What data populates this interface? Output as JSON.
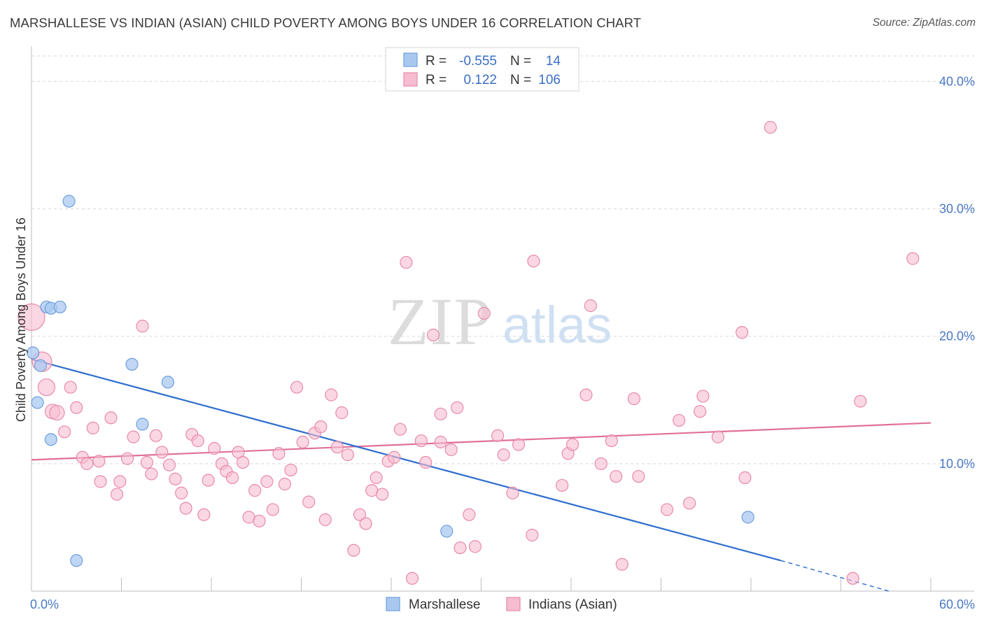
{
  "title": "MARSHALLESE VS INDIAN (ASIAN) CHILD POVERTY AMONG BOYS UNDER 16 CORRELATION CHART",
  "source": "Source: ZipAtlas.com",
  "watermark": {
    "zip": "ZIP",
    "atlas": "atlas"
  },
  "colors": {
    "marshallese_fill": "#a9c8f0",
    "marshallese_stroke": "#6e9fdc",
    "marshallese_line": "#2f6fce",
    "indian_fill": "#f6bcd0",
    "indian_stroke": "#e88aa9",
    "indian_line": "#e0709a",
    "tick_text": "#4a78c4",
    "grid": "#d8d8d8"
  },
  "legend": {
    "rows": [
      {
        "r_label": "R =",
        "r_value": "-0.555",
        "n_label": "N =",
        "n_value": "14"
      },
      {
        "r_label": "R =",
        "r_value": "0.122",
        "n_label": "N =",
        "n_value": "106"
      }
    ]
  },
  "bottom_legend": [
    "Marshallese",
    "Indians (Asian)"
  ],
  "chart_data": {
    "type": "scatter",
    "title": "MARSHALLESE VS INDIAN (ASIAN) CHILD POVERTY AMONG BOYS UNDER 16 CORRELATION CHART",
    "xlabel": "",
    "ylabel": "Child Poverty Among Boys Under 16",
    "xlim": [
      0,
      60
    ],
    "ylim": [
      0,
      42
    ],
    "x_tick_labels": [
      "0.0%",
      "60.0%"
    ],
    "y_ticks": [
      10,
      20,
      30,
      40
    ],
    "y_tick_labels": [
      "10.0%",
      "20.0%",
      "30.0%",
      "40.0%"
    ],
    "grid": "horizontal dashed",
    "legend_position": "top-center",
    "series": [
      {
        "name": "Marshallese",
        "r": -0.555,
        "n": 14,
        "points": [
          [
            2.5,
            30.6
          ],
          [
            1.0,
            22.3
          ],
          [
            1.3,
            22.2
          ],
          [
            1.9,
            22.3
          ],
          [
            0.1,
            18.7
          ],
          [
            0.6,
            17.7
          ],
          [
            6.7,
            17.8
          ],
          [
            9.1,
            16.4
          ],
          [
            0.4,
            14.8
          ],
          [
            7.4,
            13.1
          ],
          [
            1.3,
            11.9
          ],
          [
            3.0,
            2.4
          ],
          [
            27.7,
            4.7
          ],
          [
            47.8,
            5.8
          ]
        ],
        "trend": {
          "x": [
            0,
            50.0
          ],
          "y": [
            18.2,
            2.4
          ]
        },
        "trend_dashed": {
          "x": [
            50.0,
            57.2
          ],
          "y": [
            2.4,
            0.0
          ]
        }
      },
      {
        "name": "Indians (Asian)",
        "r": 0.122,
        "n": 106,
        "points": [
          [
            0.0,
            21.5
          ],
          [
            0.7,
            18.0
          ],
          [
            1.0,
            16.0
          ],
          [
            1.4,
            14.1
          ],
          [
            1.7,
            14.0
          ],
          [
            2.2,
            12.5
          ],
          [
            2.6,
            16.0
          ],
          [
            3.0,
            14.4
          ],
          [
            3.4,
            10.5
          ],
          [
            3.7,
            10.0
          ],
          [
            4.1,
            12.8
          ],
          [
            4.5,
            10.2
          ],
          [
            5.3,
            13.6
          ],
          [
            4.6,
            8.6
          ],
          [
            5.9,
            8.6
          ],
          [
            5.7,
            7.6
          ],
          [
            6.4,
            10.4
          ],
          [
            6.8,
            12.1
          ],
          [
            7.4,
            20.8
          ],
          [
            7.7,
            10.1
          ],
          [
            8.0,
            9.2
          ],
          [
            8.3,
            12.2
          ],
          [
            8.7,
            10.9
          ],
          [
            9.2,
            9.9
          ],
          [
            9.6,
            8.8
          ],
          [
            10.0,
            7.7
          ],
          [
            10.3,
            6.5
          ],
          [
            10.7,
            12.3
          ],
          [
            11.1,
            11.8
          ],
          [
            11.5,
            6.0
          ],
          [
            11.8,
            8.7
          ],
          [
            12.2,
            11.2
          ],
          [
            12.7,
            10.0
          ],
          [
            13.0,
            9.4
          ],
          [
            13.4,
            8.9
          ],
          [
            13.8,
            10.9
          ],
          [
            14.1,
            10.1
          ],
          [
            14.5,
            5.8
          ],
          [
            14.9,
            7.9
          ],
          [
            15.2,
            5.5
          ],
          [
            15.7,
            8.6
          ],
          [
            16.1,
            6.4
          ],
          [
            16.5,
            10.8
          ],
          [
            16.9,
            8.4
          ],
          [
            17.3,
            9.5
          ],
          [
            17.7,
            16.0
          ],
          [
            18.1,
            11.7
          ],
          [
            18.5,
            7.0
          ],
          [
            18.9,
            12.4
          ],
          [
            19.3,
            12.9
          ],
          [
            19.6,
            5.6
          ],
          [
            20.0,
            15.4
          ],
          [
            20.4,
            11.3
          ],
          [
            20.7,
            14.0
          ],
          [
            21.1,
            10.7
          ],
          [
            21.5,
            3.2
          ],
          [
            21.9,
            6.0
          ],
          [
            22.3,
            5.3
          ],
          [
            22.7,
            7.9
          ],
          [
            23.0,
            8.9
          ],
          [
            23.4,
            7.6
          ],
          [
            23.8,
            10.2
          ],
          [
            24.2,
            10.5
          ],
          [
            24.6,
            12.7
          ],
          [
            25.0,
            25.8
          ],
          [
            25.4,
            1.0
          ],
          [
            26.0,
            11.8
          ],
          [
            26.3,
            10.1
          ],
          [
            26.8,
            20.1
          ],
          [
            27.3,
            13.9
          ],
          [
            27.3,
            11.7
          ],
          [
            28.0,
            11.1
          ],
          [
            28.4,
            14.4
          ],
          [
            28.6,
            3.4
          ],
          [
            29.2,
            6.0
          ],
          [
            29.6,
            3.5
          ],
          [
            30.2,
            21.8
          ],
          [
            31.1,
            12.2
          ],
          [
            31.5,
            10.7
          ],
          [
            32.1,
            7.7
          ],
          [
            32.5,
            11.5
          ],
          [
            33.4,
            4.4
          ],
          [
            33.5,
            25.9
          ],
          [
            35.4,
            8.3
          ],
          [
            35.8,
            10.8
          ],
          [
            36.1,
            11.5
          ],
          [
            37.0,
            15.4
          ],
          [
            37.3,
            22.4
          ],
          [
            38.0,
            10.0
          ],
          [
            38.7,
            11.8
          ],
          [
            39.0,
            9.0
          ],
          [
            39.4,
            2.1
          ],
          [
            40.2,
            15.1
          ],
          [
            40.5,
            9.0
          ],
          [
            42.4,
            6.4
          ],
          [
            43.2,
            13.4
          ],
          [
            43.9,
            6.9
          ],
          [
            44.6,
            14.1
          ],
          [
            44.8,
            15.3
          ],
          [
            45.8,
            12.1
          ],
          [
            47.4,
            20.3
          ],
          [
            47.6,
            8.9
          ],
          [
            49.3,
            36.4
          ],
          [
            54.8,
            1.0
          ],
          [
            55.3,
            14.9
          ],
          [
            58.8,
            26.1
          ]
        ],
        "trend": {
          "x": [
            0,
            60
          ],
          "y": [
            10.3,
            13.2
          ]
        }
      }
    ]
  }
}
